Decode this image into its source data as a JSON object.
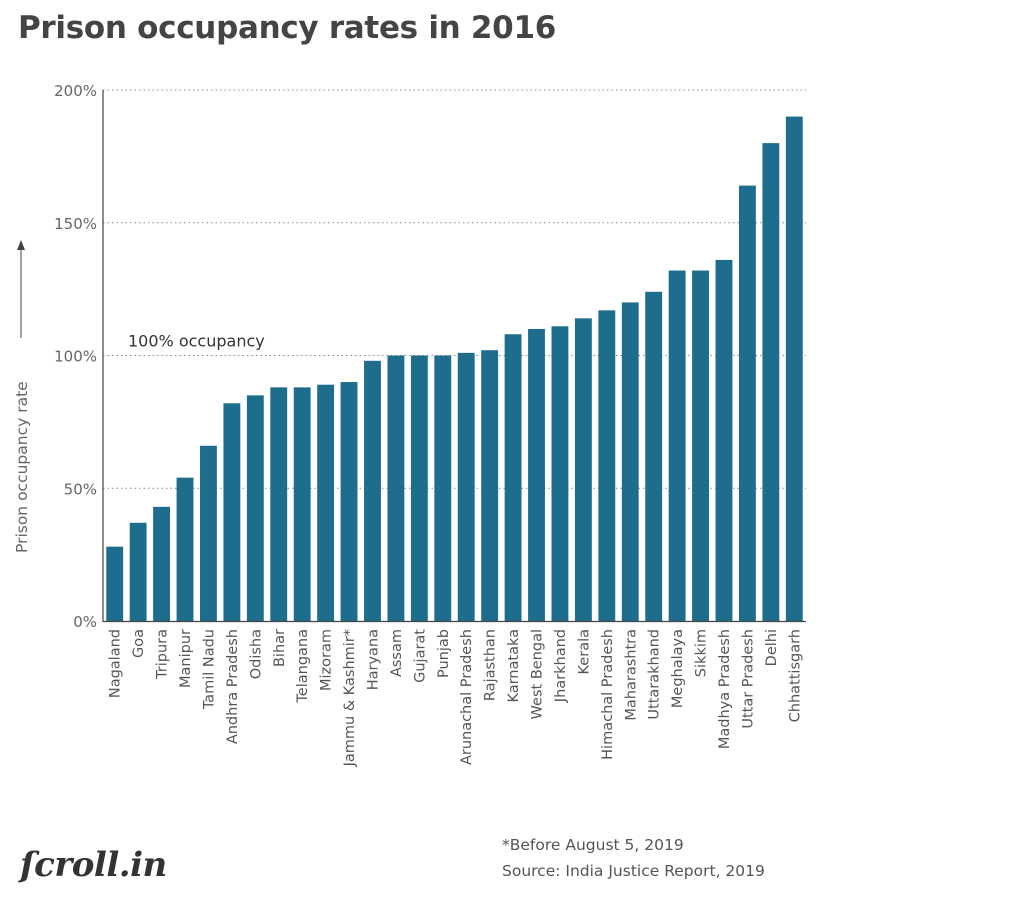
{
  "chart_data": {
    "type": "bar",
    "title": "Prison occupancy rates in 2016",
    "ylabel": "Prison occupancy rate",
    "xlabel": "",
    "ylim": [
      0,
      200
    ],
    "yticks": [
      0,
      50,
      100,
      150,
      200
    ],
    "ytick_labels": [
      "0%",
      "50%",
      "100%",
      "150%",
      "200%"
    ],
    "grid": "horizontal dotted",
    "bar_color": "#1f6d8c",
    "reference_line": {
      "value": 100,
      "label": "100% occupancy"
    },
    "categories": [
      "Nagaland",
      "Goa",
      "Tripura",
      "Manipur",
      "Tamil Nadu",
      "Andhra Pradesh",
      "Odisha",
      "Bihar",
      "Telangana",
      "Mizoram",
      "Jammu & Kashmir*",
      "Haryana",
      "Assam",
      "Gujarat",
      "Punjab",
      "Arunachal Pradesh",
      "Rajasthan",
      "Karnataka",
      "West Bengal",
      "Jharkhand",
      "Kerala",
      "Himachal Pradesh",
      "Maharashtra",
      "Uttarakhand",
      "Meghalaya",
      "Sikkim",
      "Madhya Pradesh",
      "Uttar Pradesh",
      "Delhi",
      "Chhattisgarh"
    ],
    "values": [
      28,
      37,
      43,
      54,
      66,
      82,
      85,
      88,
      88,
      89,
      90,
      98,
      100,
      100,
      100,
      101,
      102,
      108,
      110,
      111,
      114,
      117,
      120,
      124,
      132,
      132,
      136,
      164,
      180,
      190
    ]
  },
  "footnotes": {
    "note": "*Before August 5, 2019",
    "source": "Source: India Justice Report, 2019"
  },
  "brand": {
    "logo_text": "Scroll.in",
    "logo_display": "ſcroll.in"
  }
}
